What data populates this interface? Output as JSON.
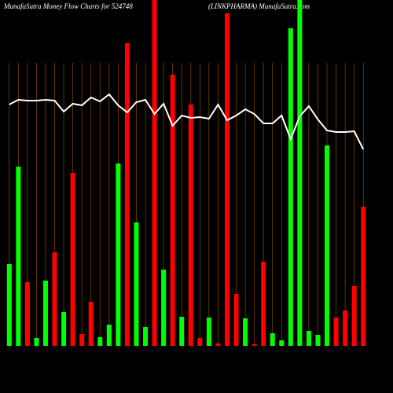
{
  "chart_data": {
    "type": "bar",
    "title": "MunafaSutra  Money Flow  Charts for 524748",
    "subtitle": "(LINKPHARMA) MunafaSutra.com",
    "ylim": [
      0,
      440
    ],
    "series": [
      {
        "name": "Money Flow",
        "type": "bar",
        "colors": [
          "#00ff00",
          "#00ff00",
          "#ff0000",
          "#00ff00",
          "#00ff00",
          "#ff0000",
          "#00ff00",
          "#ff0000",
          "#ff0000",
          "#ff0000",
          "#00ff00",
          "#00ff00",
          "#00ff00",
          "#ff0000",
          "#00ff00",
          "#00ff00",
          "#ff0000",
          "#00ff00",
          "#ff0000",
          "#00ff00",
          "#ff0000",
          "#ff0000",
          "#00ff00",
          "#ff0000",
          "#ff0000",
          "#ff0000",
          "#00ff00",
          "#ff0000",
          "#ff0000",
          "#00ff00",
          "#00ff00",
          "#00ff00",
          "#00ff00",
          "#00ff00",
          "#00ff00",
          "#00ff00",
          "#ff0000",
          "#ff0000",
          "#ff0000",
          "#ff0000"
        ],
        "values": [
          104,
          228,
          81,
          10,
          83,
          119,
          43,
          220,
          15,
          56,
          11,
          27,
          232,
          385,
          157,
          24,
          445,
          97,
          345,
          37,
          307,
          10,
          36,
          3,
          423,
          66,
          35,
          2,
          107,
          16,
          7,
          404,
          445,
          19,
          14,
          255,
          36,
          45,
          76,
          177
        ]
      },
      {
        "name": "Trend",
        "type": "line",
        "color": "#ffffff",
        "values": [
          307,
          313,
          312,
          312,
          313,
          312,
          298,
          308,
          306,
          316,
          311,
          320,
          306,
          297,
          310,
          313,
          295,
          308,
          280,
          293,
          290,
          291,
          289,
          307,
          287,
          293,
          301,
          295,
          283,
          283,
          293,
          263,
          292,
          305,
          288,
          274,
          272,
          272,
          273,
          250
        ]
      }
    ]
  }
}
